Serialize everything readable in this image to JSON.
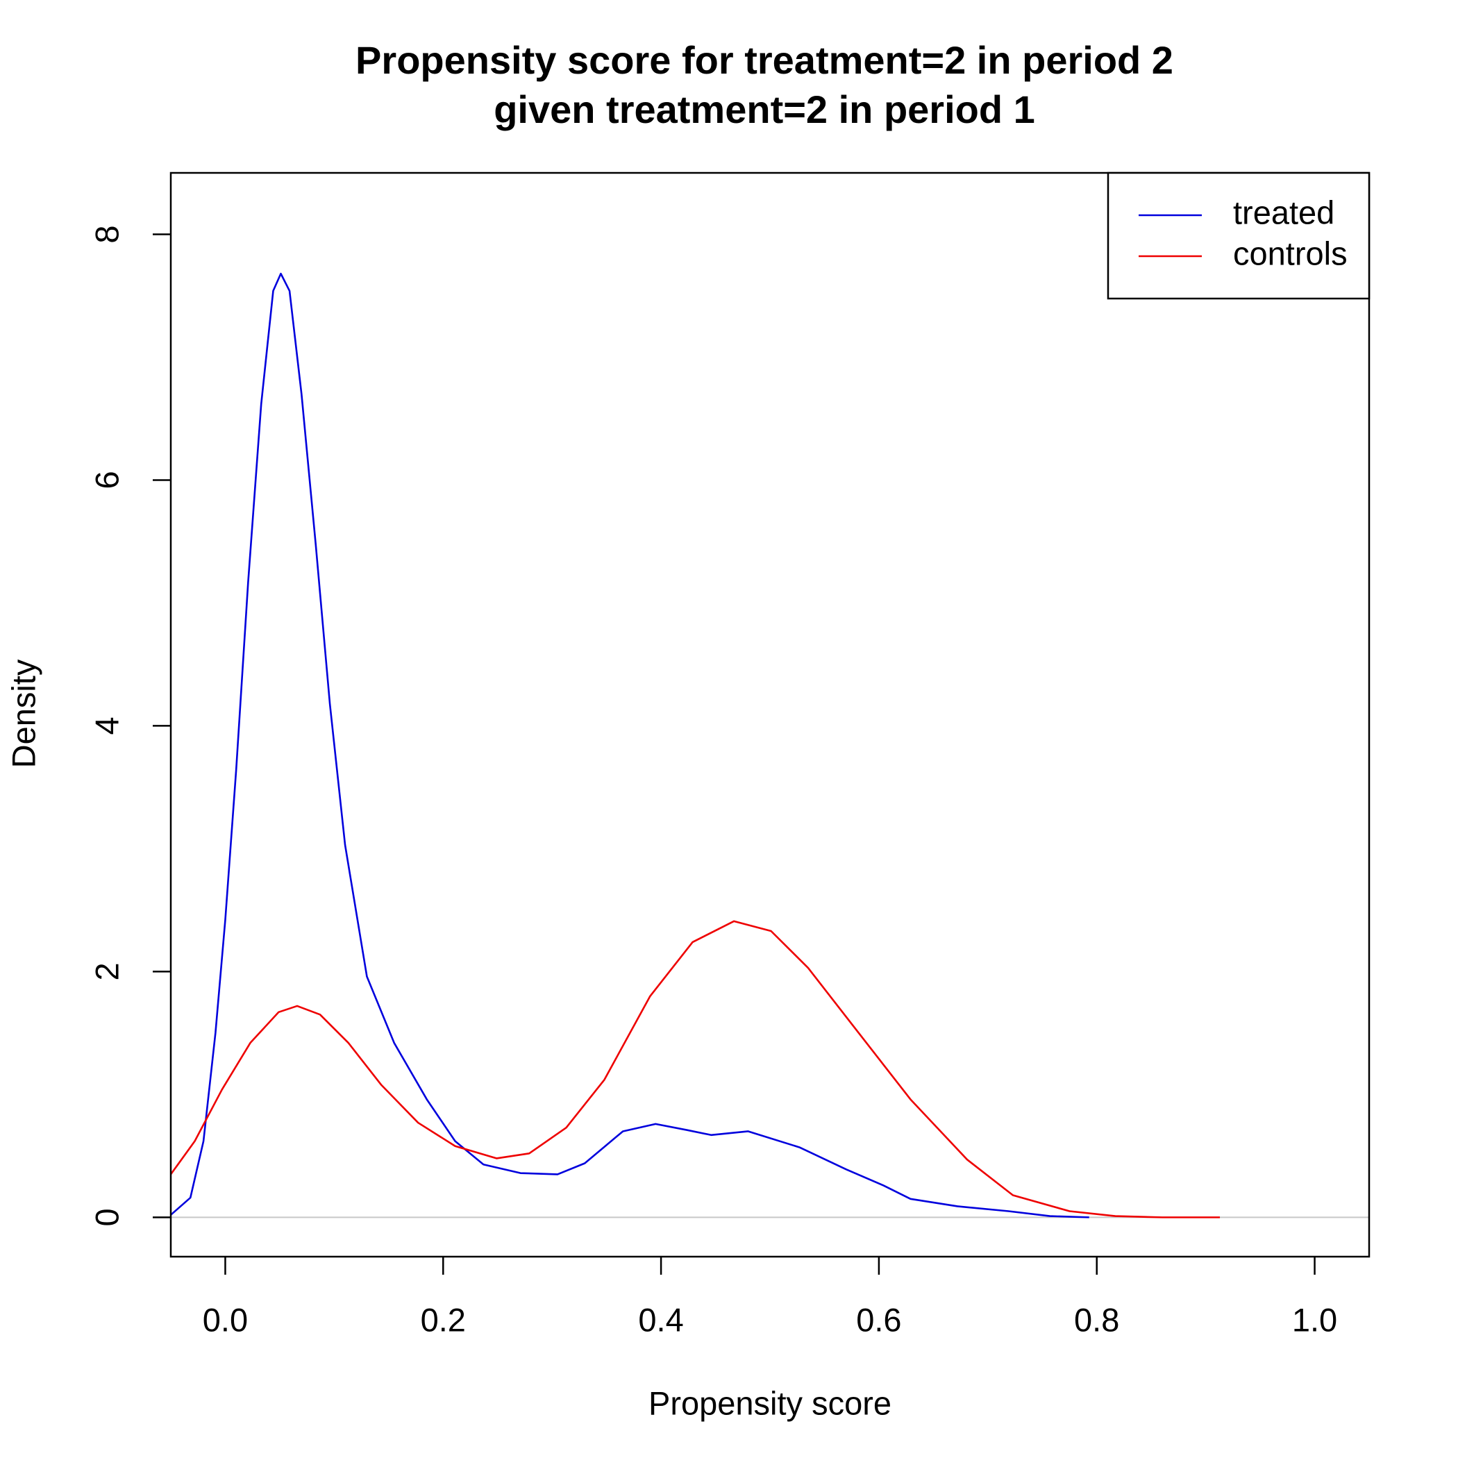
{
  "chart_data": {
    "type": "line",
    "title": [
      "Propensity score for treatment=2 in period 2",
      "given treatment=2 in period 1"
    ],
    "x_label": "Propensity score",
    "y_label": "Density",
    "xlim": [
      -0.05,
      1.05
    ],
    "ylim": [
      -0.32,
      8.5
    ],
    "xticks": [
      {
        "value": 0,
        "label": "0.0"
      },
      0.2,
      0.4,
      0.6,
      0.8,
      {
        "value": 1,
        "label": "1.0"
      }
    ],
    "yticks": [
      0,
      2,
      4,
      6,
      8
    ],
    "legend": "top-right",
    "series": [
      {
        "name": "treated",
        "color": "#0000dd",
        "x": [
          -0.05,
          -0.032,
          -0.02,
          -0.009,
          0.0,
          0.01,
          0.021,
          0.033,
          0.044,
          0.051,
          0.059,
          0.07,
          0.083,
          0.096,
          0.11,
          0.13,
          0.155,
          0.185,
          0.211,
          0.237,
          0.271,
          0.305,
          0.33,
          0.365,
          0.395,
          0.424,
          0.446,
          0.48,
          0.527,
          0.57,
          0.604,
          0.629,
          0.672,
          0.719,
          0.757,
          0.793
        ],
        "values": [
          0.02,
          0.16,
          0.62,
          1.5,
          2.42,
          3.64,
          5.17,
          6.62,
          7.54,
          7.68,
          7.54,
          6.7,
          5.48,
          4.18,
          3.03,
          1.96,
          1.42,
          0.96,
          0.62,
          0.43,
          0.36,
          0.35,
          0.44,
          0.7,
          0.76,
          0.71,
          0.67,
          0.7,
          0.57,
          0.39,
          0.26,
          0.15,
          0.09,
          0.05,
          0.01,
          0
        ]
      },
      {
        "name": "controls",
        "color": "#ee0000",
        "x": [
          -0.05,
          -0.028,
          -0.003,
          0.023,
          0.049,
          0.066,
          0.087,
          0.113,
          0.143,
          0.177,
          0.211,
          0.249,
          0.279,
          0.313,
          0.348,
          0.39,
          0.429,
          0.467,
          0.501,
          0.535,
          0.578,
          0.629,
          0.681,
          0.723,
          0.775,
          0.817,
          0.86,
          0.913
        ],
        "values": [
          0.35,
          0.62,
          1.04,
          1.42,
          1.67,
          1.72,
          1.65,
          1.42,
          1.08,
          0.77,
          0.58,
          0.48,
          0.52,
          0.73,
          1.12,
          1.8,
          2.24,
          2.41,
          2.33,
          2.03,
          1.54,
          0.96,
          0.47,
          0.18,
          0.05,
          0.01,
          0,
          0
        ]
      }
    ]
  }
}
